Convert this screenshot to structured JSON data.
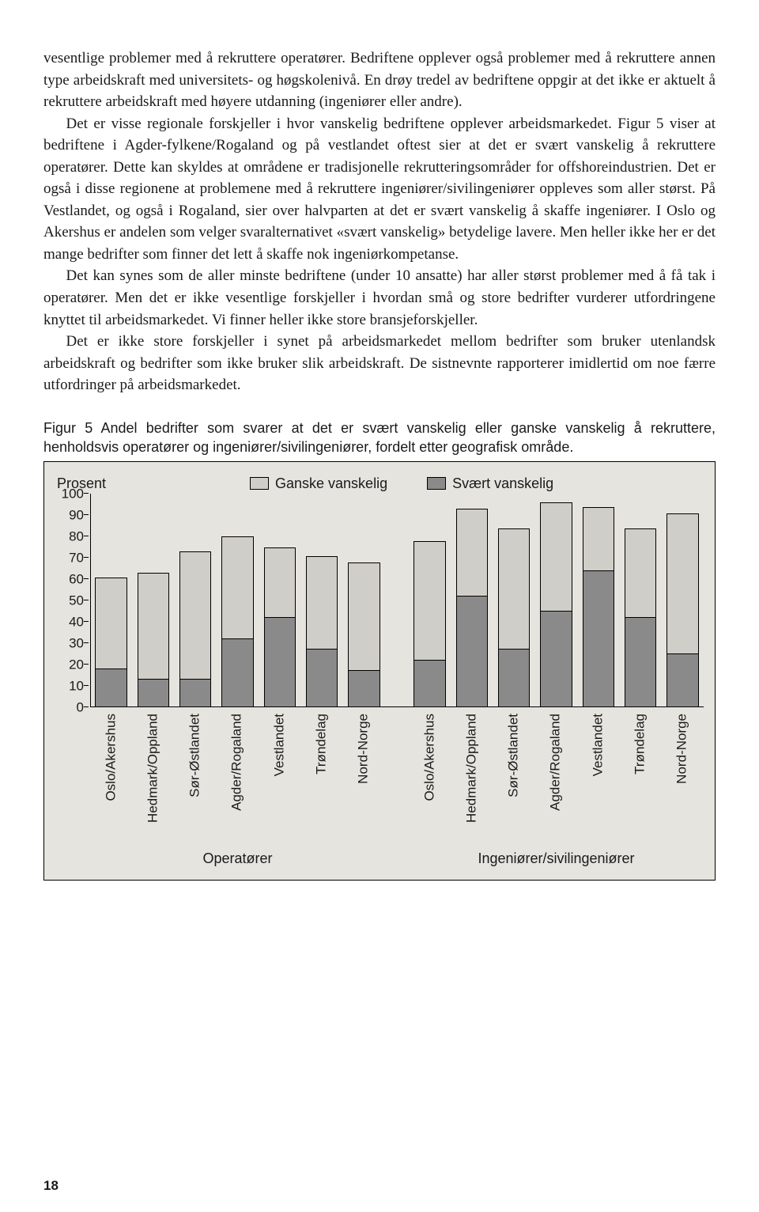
{
  "paragraphs": [
    "vesentlige problemer med å rekruttere operatører. Bedriftene opplever også problemer med å rekruttere annen type arbeidskraft med universitets- og høgskolenivå. En drøy tredel av bedriftene oppgir at det ikke er aktuelt å rekruttere arbeidskraft med høyere utdanning (ingeniører eller andre).",
    "Det er visse regionale forskjeller i hvor vanskelig bedriftene opplever arbeidsmarkedet. Figur 5 viser at bedriftene i Agder-fylkene/Rogaland og på vestlandet oftest sier at det er svært vanskelig å rekruttere operatører. Dette kan skyldes at områdene er tradisjonelle rekrutteringsområder for offshoreindustrien. Det er også i disse regionene at problemene med å rekruttere ingeniører/sivilingeniører oppleves som aller størst. På Vestlandet, og også i Rogaland, sier over halvparten at det er svært vanskelig å skaffe ingeniører. I Oslo og Akershus er andelen som velger svaralternativet «svært vanskelig» betydelige lavere. Men heller ikke her er det mange bedrifter som finner det lett å skaffe nok ingeniørkompetanse.",
    "Det kan synes som de aller minste bedriftene (under 10 ansatte) har aller størst problemer med å få tak i operatører. Men det er ikke vesentlige forskjeller i hvordan små og store bedrifter vurderer utfordringene knyttet til arbeidsmarkedet. Vi finner heller ikke store bransjeforskjeller.",
    "Det er ikke store forskjeller i synet på arbeidsmarkedet mellom bedrifter som bruker utenlandsk arbeidskraft og bedrifter som ikke bruker slik arbeidskraft. De sistnevnte rapporterer imidlertid om noe færre utfordringer på arbeidsmarkedet."
  ],
  "figure_caption": "Figur 5 Andel bedrifter som svarer at det er svært vanskelig eller ganske vanskelig å rekruttere, henholdsvis operatører og ingeniører/sivilingeniører, fordelt etter geografisk område.",
  "chart": {
    "type": "stacked-bar",
    "y_label": "Prosent",
    "ylim": [
      0,
      100
    ],
    "ytick_step": 10,
    "background_color": "#e6e4df",
    "series": [
      {
        "name": "Ganske vanskelig",
        "color": "#d0cec8"
      },
      {
        "name": "Svært vanskelig",
        "color": "#8a8a8a"
      }
    ],
    "groups": [
      {
        "label": "Operatører",
        "bars": [
          {
            "label": "Oslo/Akershus",
            "svart": 18,
            "ganske": 43
          },
          {
            "label": "Hedmark/Oppland",
            "svart": 13,
            "ganske": 50
          },
          {
            "label": "Sør-Østlandet",
            "svart": 13,
            "ganske": 60
          },
          {
            "label": "Agder/Rogaland",
            "svart": 32,
            "ganske": 48
          },
          {
            "label": "Vestlandet",
            "svart": 42,
            "ganske": 33
          },
          {
            "label": "Trøndelag",
            "svart": 27,
            "ganske": 44
          },
          {
            "label": "Nord-Norge",
            "svart": 17,
            "ganske": 51
          }
        ]
      },
      {
        "label": "Ingeniører/sivilingeniører",
        "bars": [
          {
            "label": "Oslo/Akershus",
            "svart": 22,
            "ganske": 56
          },
          {
            "label": "Hedmark/Oppland",
            "svart": 52,
            "ganske": 41
          },
          {
            "label": "Sør-Østlandet",
            "svart": 27,
            "ganske": 57
          },
          {
            "label": "Agder/Rogaland",
            "svart": 45,
            "ganske": 51
          },
          {
            "label": "Vestlandet",
            "svart": 64,
            "ganske": 30
          },
          {
            "label": "Trøndelag",
            "svart": 42,
            "ganske": 42
          },
          {
            "label": "Nord-Norge",
            "svart": 25,
            "ganske": 66
          }
        ]
      }
    ]
  },
  "page_number": "18"
}
